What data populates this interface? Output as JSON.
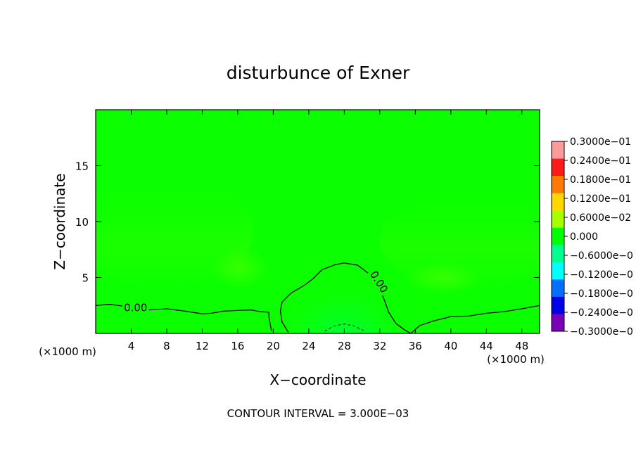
{
  "chart_data": {
    "type": "heatmap",
    "title": "disturbunce of Exner",
    "xlabel": "X−coordinate",
    "ylabel": "Z−coordinate",
    "x_unit": "(×1000 m)",
    "x_unit_right": "(×1000 m)",
    "footer": "CONTOUR INTERVAL = 3.000E−03",
    "xlim": [
      0,
      50
    ],
    "ylim": [
      0,
      20
    ],
    "x_ticks": [
      4,
      8,
      12,
      16,
      20,
      24,
      28,
      32,
      36,
      40,
      44,
      48
    ],
    "y_ticks": [
      5,
      10,
      15
    ],
    "color_range": [
      -0.03,
      0.03
    ],
    "colorbar": {
      "labels": [
        "0.3000e−01",
        "0.2400e−01",
        "0.1800e−01",
        "0.1200e−01",
        "0.6000e−02",
        "0.000",
        "−0.6000e−0",
        "−0.1200e−0",
        "−0.1800e−0",
        "−0.2400e−0",
        "−0.3000e−0"
      ],
      "colors": [
        "#ff9a9a",
        "#ff1a1a",
        "#ff7a00",
        "#ffd800",
        "#a8ff00",
        "#00ff00",
        "#00ff90",
        "#00ffff",
        "#0070ff",
        "#0000e6",
        "#7a00b8"
      ]
    },
    "field_color": "#0cff00",
    "contours": [
      {
        "label": "0.00",
        "style": "solid",
        "points": [
          [
            0,
            2.5
          ],
          [
            1.5,
            2.6
          ],
          [
            3,
            2.45
          ],
          [
            4.5,
            2.15
          ],
          [
            6,
            2.1
          ],
          [
            8,
            2.2
          ],
          [
            10,
            2.0
          ],
          [
            12,
            1.75
          ],
          [
            13,
            1.8
          ],
          [
            14.5,
            2.0
          ],
          [
            16,
            2.05
          ],
          [
            17.5,
            2.1
          ],
          [
            18.5,
            1.95
          ],
          [
            19.5,
            1.9
          ]
        ]
      },
      {
        "label": "",
        "style": "solid",
        "points": [
          [
            19.5,
            1.9
          ],
          [
            19.5,
            1.5
          ],
          [
            19.8,
            0.2
          ]
        ]
      },
      {
        "label": "0.00",
        "style": "solid",
        "points": [
          [
            21.7,
            0.1
          ],
          [
            21.0,
            1.0
          ],
          [
            20.8,
            2.0
          ],
          [
            21.0,
            2.8
          ],
          [
            22.0,
            3.6
          ],
          [
            23.5,
            4.3
          ],
          [
            24.5,
            4.9
          ],
          [
            25.5,
            5.7
          ],
          [
            27,
            6.15
          ],
          [
            28,
            6.3
          ],
          [
            29.5,
            6.1
          ],
          [
            31,
            5.2
          ],
          [
            32,
            4.0
          ],
          [
            32.5,
            3.0
          ],
          [
            33.0,
            1.9
          ],
          [
            33.8,
            0.9
          ],
          [
            34.8,
            0.3
          ],
          [
            35.5,
            0.0
          ]
        ]
      },
      {
        "label": "",
        "style": "solid",
        "points": [
          [
            35.5,
            0.0
          ],
          [
            36.5,
            0.7
          ],
          [
            38,
            1.1
          ],
          [
            40,
            1.5
          ],
          [
            42,
            1.55
          ],
          [
            44,
            1.8
          ],
          [
            46,
            1.95
          ],
          [
            48,
            2.2
          ],
          [
            50,
            2.5
          ]
        ]
      },
      {
        "label": "",
        "style": "dashed",
        "points": [
          [
            25.8,
            0.2
          ],
          [
            26.8,
            0.65
          ],
          [
            28,
            0.85
          ],
          [
            29.2,
            0.65
          ],
          [
            30.2,
            0.25
          ]
        ]
      }
    ]
  }
}
